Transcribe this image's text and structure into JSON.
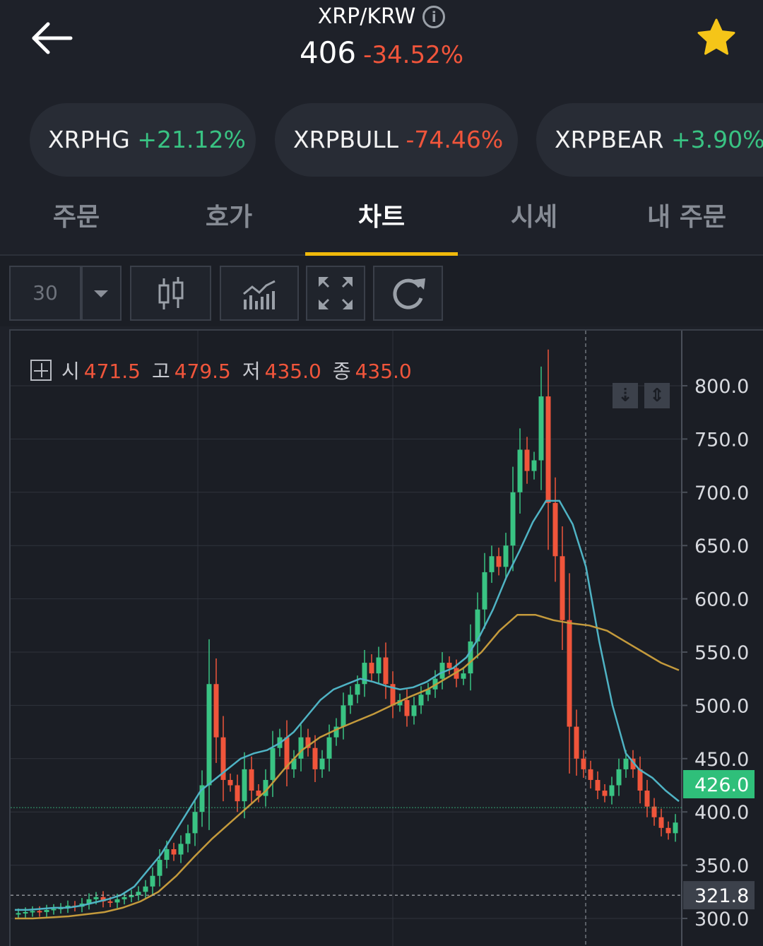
{
  "header": {
    "pair": "XRP/KRW",
    "price": "406",
    "change": "-34.52%"
  },
  "related": [
    {
      "name": "XRPHG",
      "change": "+21.12%",
      "direction": "up"
    },
    {
      "name": "XRPBULL",
      "change": "-74.46%",
      "direction": "down"
    },
    {
      "name": "XRPBEAR",
      "change": "+3.90%",
      "direction": "up"
    }
  ],
  "tabs": [
    "주문",
    "호가",
    "차트",
    "시세",
    "내 주문"
  ],
  "active_tab": "차트",
  "toolbar": {
    "interval": "30",
    "icons": [
      "chevron-down-icon",
      "candlestick-icon",
      "indicator-icon",
      "fullscreen-icon",
      "refresh-icon"
    ]
  },
  "ohlc": {
    "open_label": "시",
    "open": "471.5",
    "high_label": "고",
    "high": "479.5",
    "low_label": "저",
    "low": "435.0",
    "close_label": "종",
    "close": "435.0"
  },
  "colors": {
    "up": "#39c383",
    "down": "#f0553b",
    "accent": "#f0b90b",
    "ma_fast": "#4fb3c4",
    "ma_slow": "#c49a3c",
    "background": "#1b1e25"
  },
  "chart_data": {
    "type": "candlestick",
    "y_ticks": [
      "800.0",
      "750.0",
      "700.0",
      "650.0",
      "600.0",
      "550.0",
      "500.0",
      "450.0",
      "400.0",
      "350.0",
      "300.0"
    ],
    "ylim": [
      290,
      838
    ],
    "current_price_tag": "426.0",
    "low_marker_tag": "321.8",
    "close_series": [
      305,
      306,
      307,
      306,
      308,
      309,
      310,
      312,
      311,
      314,
      318,
      320,
      316,
      315,
      318,
      320,
      322,
      325,
      330,
      340,
      355,
      365,
      360,
      370,
      380,
      400,
      425,
      520,
      470,
      430,
      425,
      410,
      440,
      420,
      415,
      430,
      460,
      470,
      440,
      450,
      470,
      460,
      440,
      450,
      470,
      480,
      500,
      510,
      520,
      540,
      530,
      545,
      520,
      500,
      505,
      490,
      500,
      510,
      515,
      525,
      540,
      535,
      525,
      530,
      560,
      590,
      625,
      640,
      630,
      650,
      700,
      740,
      720,
      730,
      790,
      690,
      640,
      580,
      480,
      450,
      440,
      430,
      420,
      415,
      425,
      440,
      450,
      440,
      420,
      405,
      395,
      385,
      380,
      390
    ],
    "ma_fast": [
      308,
      308,
      309,
      310,
      310,
      312,
      315,
      318,
      322,
      330,
      345,
      360,
      380,
      400,
      420,
      430,
      440,
      450,
      455,
      458,
      465,
      475,
      490,
      505,
      515,
      520,
      525,
      522,
      518,
      515,
      517,
      522,
      530,
      535,
      545,
      565,
      590,
      620,
      645,
      672,
      692,
      692,
      670,
      630,
      560,
      500,
      455,
      440,
      432,
      420,
      410
    ],
    "ma_slow": [
      300,
      300,
      301,
      302,
      304,
      306,
      310,
      316,
      325,
      340,
      358,
      375,
      390,
      405,
      420,
      440,
      458,
      470,
      478,
      485,
      492,
      500,
      508,
      515,
      525,
      535,
      550,
      570,
      585,
      585,
      580,
      577,
      575,
      570,
      560,
      550,
      540,
      533
    ]
  }
}
